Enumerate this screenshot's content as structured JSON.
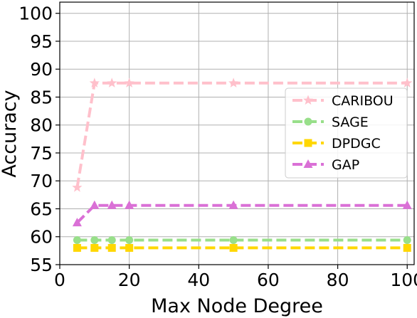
{
  "chart_data": {
    "type": "line",
    "xlabel": "Max Node Degree",
    "ylabel": "Accuracy",
    "xlim": [
      0,
      102
    ],
    "ylim": [
      55,
      102
    ],
    "xticks": [
      0,
      20,
      40,
      60,
      80,
      100
    ],
    "yticks": [
      55,
      60,
      65,
      70,
      75,
      80,
      85,
      90,
      95,
      100
    ],
    "grid": true,
    "legend_position": "right",
    "x": [
      5,
      10,
      15,
      20,
      50,
      100
    ],
    "series": [
      {
        "name": "CARIBOU",
        "values": [
          68.8,
          87.5,
          87.5,
          87.5,
          87.5,
          87.5
        ],
        "color": "#ffc0cb",
        "marker": "star"
      },
      {
        "name": "SAGE",
        "values": [
          59.4,
          59.4,
          59.4,
          59.4,
          59.4,
          59.4
        ],
        "color": "#98df8a",
        "marker": "circle"
      },
      {
        "name": "DPDGC",
        "values": [
          58.0,
          58.0,
          58.0,
          58.0,
          58.0,
          58.0
        ],
        "color": "#ffd700",
        "marker": "square"
      },
      {
        "name": "GAP",
        "values": [
          62.5,
          65.6,
          65.6,
          65.6,
          65.6,
          65.6
        ],
        "color": "#da70d6",
        "marker": "triangle"
      }
    ]
  }
}
